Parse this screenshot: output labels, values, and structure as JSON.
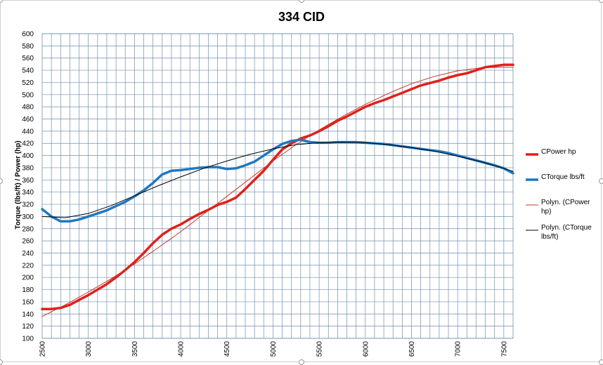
{
  "chart_data": {
    "type": "line",
    "title": "334 CID",
    "xlabel": "",
    "ylabel": "Torque (lbs/ft) / Power (hp)",
    "xlim": [
      2500,
      7600
    ],
    "ylim": [
      100,
      600
    ],
    "x_ticks": [
      2500,
      3000,
      3500,
      4000,
      4500,
      5000,
      5500,
      6000,
      6500,
      7000,
      7500
    ],
    "y_ticks": [
      100,
      120,
      140,
      160,
      180,
      200,
      220,
      240,
      260,
      280,
      300,
      320,
      340,
      360,
      380,
      400,
      420,
      440,
      460,
      480,
      500,
      520,
      540,
      560,
      580,
      600
    ],
    "grid": true,
    "legend_position": "right",
    "series": [
      {
        "name": "CPower hp",
        "color": "#e0201a",
        "x": [
          2500,
          2600,
          2700,
          2800,
          2900,
          3000,
          3100,
          3200,
          3300,
          3400,
          3500,
          3600,
          3700,
          3800,
          3900,
          4000,
          4100,
          4200,
          4300,
          4400,
          4500,
          4600,
          4700,
          4800,
          4900,
          5000,
          5100,
          5200,
          5300,
          5400,
          5500,
          5600,
          5700,
          5800,
          5900,
          6000,
          6100,
          6200,
          6300,
          6400,
          6500,
          6600,
          6700,
          6800,
          6900,
          7000,
          7100,
          7200,
          7300,
          7400,
          7500,
          7600
        ],
        "values": [
          148,
          148,
          150,
          155,
          163,
          171,
          180,
          189,
          200,
          212,
          225,
          240,
          256,
          270,
          280,
          287,
          296,
          304,
          311,
          319,
          324,
          331,
          345,
          360,
          375,
          393,
          410,
          420,
          428,
          433,
          440,
          448,
          457,
          464,
          472,
          480,
          486,
          491,
          497,
          503,
          509,
          515,
          519,
          523,
          528,
          532,
          535,
          540,
          545,
          547,
          549,
          549
        ]
      },
      {
        "name": "CTorque lbs/ft",
        "color": "#1f78c1",
        "x": [
          2500,
          2600,
          2700,
          2800,
          2900,
          3000,
          3100,
          3200,
          3300,
          3400,
          3500,
          3600,
          3700,
          3800,
          3900,
          4000,
          4100,
          4200,
          4300,
          4400,
          4500,
          4600,
          4700,
          4800,
          4900,
          5000,
          5100,
          5200,
          5300,
          5400,
          5500,
          5600,
          5700,
          5800,
          5900,
          6000,
          6100,
          6200,
          6300,
          6400,
          6500,
          6600,
          6700,
          6800,
          6900,
          7000,
          7100,
          7200,
          7300,
          7400,
          7500,
          7600
        ],
        "values": [
          312,
          300,
          292,
          292,
          295,
          300,
          305,
          310,
          317,
          324,
          333,
          343,
          355,
          369,
          375,
          376,
          378,
          380,
          381,
          381,
          378,
          379,
          384,
          390,
          400,
          410,
          419,
          424,
          426,
          422,
          421,
          421,
          422,
          422,
          422,
          421,
          420,
          419,
          417,
          415,
          413,
          411,
          409,
          407,
          404,
          400,
          396,
          392,
          388,
          384,
          379,
          371
        ]
      },
      {
        "name": "Polyn. (CPower hp)",
        "color": "#c0392b",
        "trendline": true,
        "x": [
          2500,
          2750,
          3000,
          3250,
          3500,
          3750,
          4000,
          4250,
          4500,
          4750,
          5000,
          5250,
          5500,
          5750,
          6000,
          6250,
          6500,
          6750,
          7000,
          7250,
          7500,
          7600
        ],
        "values": [
          136,
          155,
          176,
          198,
          222,
          248,
          275,
          304,
          333,
          362,
          391,
          418,
          442,
          464,
          484,
          502,
          518,
          530,
          539,
          544,
          545,
          545
        ]
      },
      {
        "name": "Polyn. (CTorque lbs/ft)",
        "color": "#000000",
        "trendline": true,
        "x": [
          2500,
          2750,
          3000,
          3250,
          3500,
          3750,
          4000,
          4250,
          4500,
          4750,
          5000,
          5250,
          5500,
          5750,
          6000,
          6250,
          6500,
          6750,
          7000,
          7250,
          7500,
          7600
        ],
        "values": [
          300,
          298,
          305,
          318,
          334,
          350,
          365,
          379,
          391,
          402,
          411,
          418,
          421,
          422,
          421,
          418,
          413,
          407,
          399,
          390,
          379,
          374
        ]
      }
    ]
  },
  "legend": {
    "items": [
      {
        "label": "CPower hp"
      },
      {
        "label": "CTorque lbs/ft"
      },
      {
        "label": "Polyn. (CPower hp)"
      },
      {
        "label": "Polyn. (CTorque lbs/ft)"
      }
    ]
  }
}
